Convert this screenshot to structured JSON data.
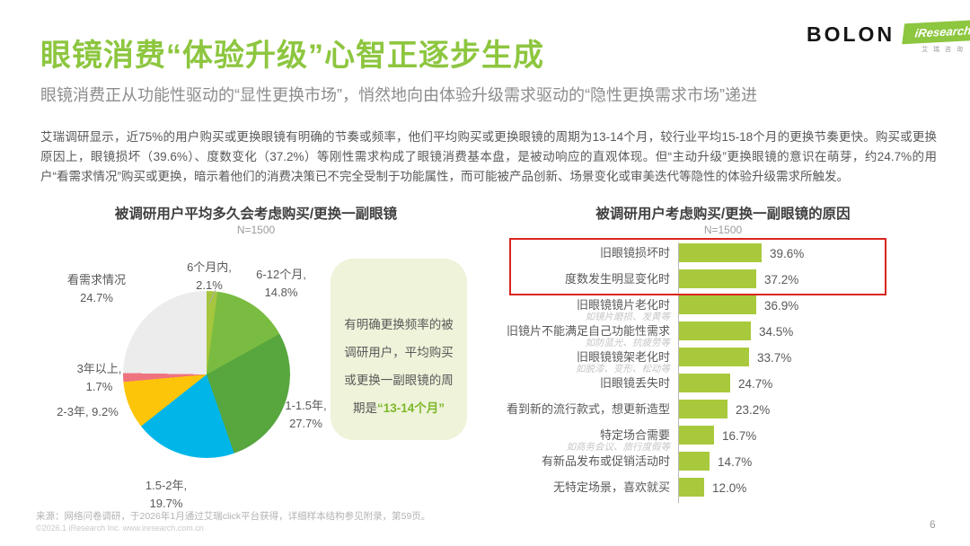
{
  "header": {
    "title": "眼镜消费“体验升级”心智正逐步生成",
    "subtitle": "眼镜消费正从功能性驱动的“显性更换市场”，悄然地向由体验升级需求驱动的“隐性更换需求市场”递进",
    "logo": {
      "brand": "BOLON",
      "iresearch": "iResearch",
      "iresearch_sub": "艾瑞咨询"
    },
    "accent_color": "#8dc63f"
  },
  "paragraph": "艾瑞调研显示，近75%的用户购买或更换眼镜有明确的节奏或频率，他们平均购买或更换眼镜的周期为13-14个月，较行业平均15-18个月的更换节奏更快。购买或更换原因上，眼镜损坏（39.6%）、度数变化（37.2%）等刚性需求构成了眼镜消费基本盘，是被动响应的直观体现。但“主动升级”更换眼镜的意识在萌芽，约24.7%的用户“看需求情况”购买或更换，暗示着他们的消费决策已不完全受制于功能属性，而可能被产品创新、场景变化或审美迭代等隐性的体验升级需求所触发。",
  "callout": {
    "text": "有明确更换频率的被调研用户，平均购买或更换一副眼镜的周期是",
    "highlight": "“13-14个月”",
    "bg_color": "#eef3d9",
    "highlight_color": "#7cb829"
  },
  "chart_data": [
    {
      "type": "pie",
      "title": "被调研用户平均多久会考虑购买/更换一副眼镜",
      "subtitle": "N=1500",
      "start_angle": "12点钟方向，顺时针",
      "slices": [
        {
          "label": "6个月内",
          "value": 2.1,
          "display_line1": "6个月内,",
          "display_line2": "2.1%",
          "color": "#a5c63d"
        },
        {
          "label": "6-12个月",
          "value": 14.8,
          "display_line1": "6-12个月,",
          "display_line2": "14.8%",
          "color": "#7abc41"
        },
        {
          "label": "1-1.5年",
          "value": 27.7,
          "display_line1": "1-1.5年,",
          "display_line2": "27.7%",
          "color": "#57a63e"
        },
        {
          "label": "1.5-2年",
          "value": 19.7,
          "display_line1": "1.5-2年,",
          "display_line2": "19.7%",
          "color": "#00b6e9"
        },
        {
          "label": "2-3年",
          "value": 9.2,
          "display_line1": "2-3年, 9.2%",
          "display_line2": "",
          "color": "#fdc50a"
        },
        {
          "label": "3年以上",
          "value": 1.7,
          "display_line1": "3年以上,",
          "display_line2": "1.7%",
          "color": "#ef737f"
        },
        {
          "label": "看需求情况",
          "value": 24.7,
          "display_line1": "看需求情况",
          "display_line2": "24.7%",
          "color": "#ececec"
        }
      ]
    },
    {
      "type": "bar",
      "orientation": "horizontal",
      "title": "被调研用户考虑购买/更换一副眼镜的原因",
      "subtitle": "N=1500",
      "bar_color": "#a9c93d",
      "highlight_box_color": "#d9251f",
      "xlim": [
        0,
        45
      ],
      "bars": [
        {
          "label": "旧眼镜损坏时",
          "sublabel": "",
          "value": 39.6,
          "display": "39.6%",
          "highlighted": true
        },
        {
          "label": "度数发生明显变化时",
          "sublabel": "",
          "value": 37.2,
          "display": "37.2%",
          "highlighted": true
        },
        {
          "label": "旧眼镜镜片老化时",
          "sublabel": "如镜片磨损、发黄等",
          "value": 36.9,
          "display": "36.9%",
          "highlighted": false
        },
        {
          "label": "旧镜片不能满足自己功能性需求",
          "sublabel": "如防蓝光、抗疲劳等",
          "value": 34.5,
          "display": "34.5%",
          "highlighted": false
        },
        {
          "label": "旧眼镜镜架老化时",
          "sublabel": "如脱漆、变形、松动等",
          "value": 33.7,
          "display": "33.7%",
          "highlighted": false
        },
        {
          "label": "旧眼镜丢失时",
          "sublabel": "",
          "value": 24.7,
          "display": "24.7%",
          "highlighted": false
        },
        {
          "label": "看到新的流行款式，想更新造型",
          "sublabel": "",
          "value": 23.2,
          "display": "23.2%",
          "highlighted": false
        },
        {
          "label": "特定场合需要",
          "sublabel": "如商务会议、旅行度假等",
          "value": 16.7,
          "display": "16.7%",
          "highlighted": false
        },
        {
          "label": "有新品发布或促销活动时",
          "sublabel": "",
          "value": 14.7,
          "display": "14.7%",
          "highlighted": false
        },
        {
          "label": "无特定场景，喜欢就买",
          "sublabel": "",
          "value": 12.0,
          "display": "12.0%",
          "highlighted": false
        }
      ]
    }
  ],
  "footer": {
    "source": "来源：网络问卷调研，于2026年1月通过艾瑞click平台获得，详细样本结构参见附录，第59页。",
    "copyright": "©2026.1 iResearch Inc.  www.iresearch.com.cn",
    "page": "6"
  }
}
